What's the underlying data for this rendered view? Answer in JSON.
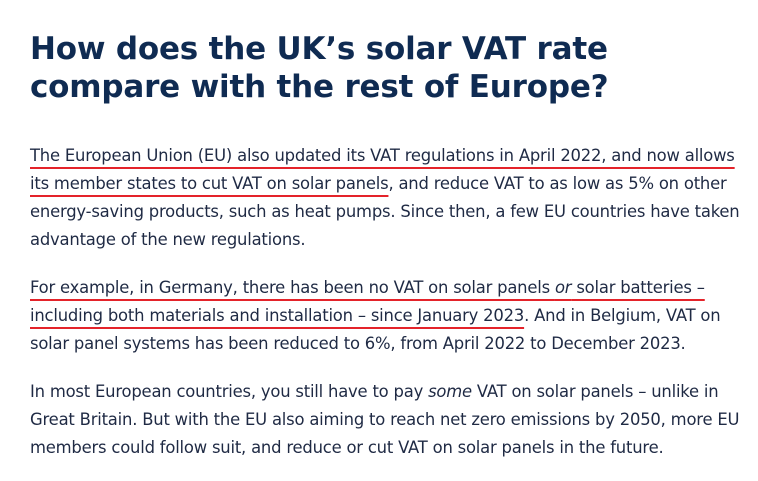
{
  "heading": "How does the UK’s solar VAT rate compare with the rest of Europe?",
  "paragraphs": {
    "p1": {
      "highlighted": "The European Union (EU) also updated its VAT regulations in April 2022, and now allows its member states to cut VAT on solar panels",
      "rest": ", and reduce VAT to as low as 5% on other energy-saving products, such as heat pumps. Since then, a few EU countries have taken advantage of the new regulations."
    },
    "p2": {
      "hl_part1": "For example, in Germany, there has been no VAT on solar panels ",
      "hl_italic": "or",
      "hl_part2": " solar batteries – including both materials and installation – since January 2023",
      "rest": ". And in Belgium, VAT on solar panel systems has been reduced to 6%, from April 2022 to December 2023."
    },
    "p3": {
      "part1": "In most European countries, you still have to pay ",
      "italic": "some",
      "part2": " VAT on solar panels – unlike in Great Britain. But with the EU also aiming to reach net zero emissions by 2050, more EU members could follow suit, and reduce or cut VAT on solar panels in the future."
    }
  },
  "colors": {
    "heading": "#0f2b52",
    "body_text": "#1f2a44",
    "highlight_underline": "#e4232a"
  }
}
